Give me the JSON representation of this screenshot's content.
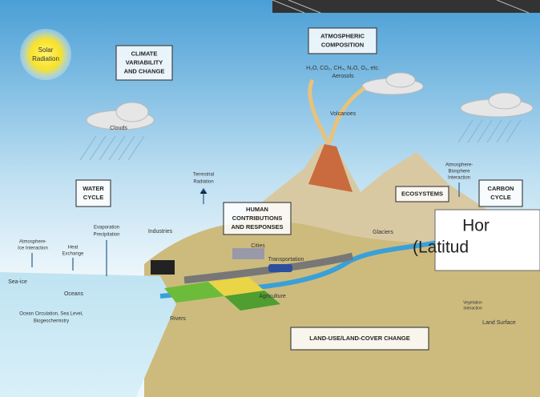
{
  "labels": [
    {
      "lines": [
        "Solar",
        "Radiation"
      ]
    },
    {
      "lines": [
        "H₂O, CO₂, CH₄, N₂O, O₃, etc.",
        "Aerosols"
      ]
    },
    {
      "lines": [
        "Volcanoes"
      ]
    },
    {
      "lines": [
        "Clouds"
      ]
    },
    {
      "lines": [
        "Terrestrial",
        "Radiation"
      ]
    },
    {
      "lines": [
        "Atmosphere-",
        "Biosphere",
        "Interaction"
      ]
    },
    {
      "lines": [
        "Evaporation",
        "Precipitation"
      ]
    },
    {
      "lines": [
        "Industries"
      ]
    },
    {
      "lines": [
        "Atmosphere-",
        "Ice Interaction"
      ]
    },
    {
      "lines": [
        "Heat",
        "Exchange"
      ]
    },
    {
      "lines": [
        "Cities"
      ]
    },
    {
      "lines": [
        "Transportation"
      ]
    },
    {
      "lines": [
        "Glaciers"
      ]
    },
    {
      "lines": [
        "Sea-ice"
      ]
    },
    {
      "lines": [
        "Oceans"
      ]
    },
    {
      "lines": [
        "Agriculture"
      ]
    },
    {
      "lines": [
        "Vegetation",
        "Interaction"
      ]
    },
    {
      "lines": [
        "Ocean Circulation, Sea Level,",
        "Biogeochemistry"
      ]
    },
    {
      "lines": [
        "Rivers"
      ]
    },
    {
      "lines": [
        "Land Surface"
      ]
    }
  ],
  "boxes": [
    {
      "lines": [
        "CLIMATE",
        "VARIABILITY",
        "AND CHANGE"
      ]
    },
    {
      "lines": [
        "ATMOSPHERIC",
        "COMPOSITION"
      ]
    },
    {
      "lines": [
        "WATER",
        "CYCLE"
      ]
    },
    {
      "lines": [
        "ECOSYSTEMS"
      ]
    },
    {
      "lines": [
        "CARBON",
        "CYCLE"
      ]
    },
    {
      "lines": [
        "HUMAN",
        "CONTRIBUTIONS",
        "AND RESPONSES"
      ]
    },
    {
      "lines": [
        "LAND-USE/LAND-COVER CHANGE"
      ]
    }
  ],
  "overlay": {
    "lines": [
      "Hor",
      "(Latitud"
    ]
  }
}
